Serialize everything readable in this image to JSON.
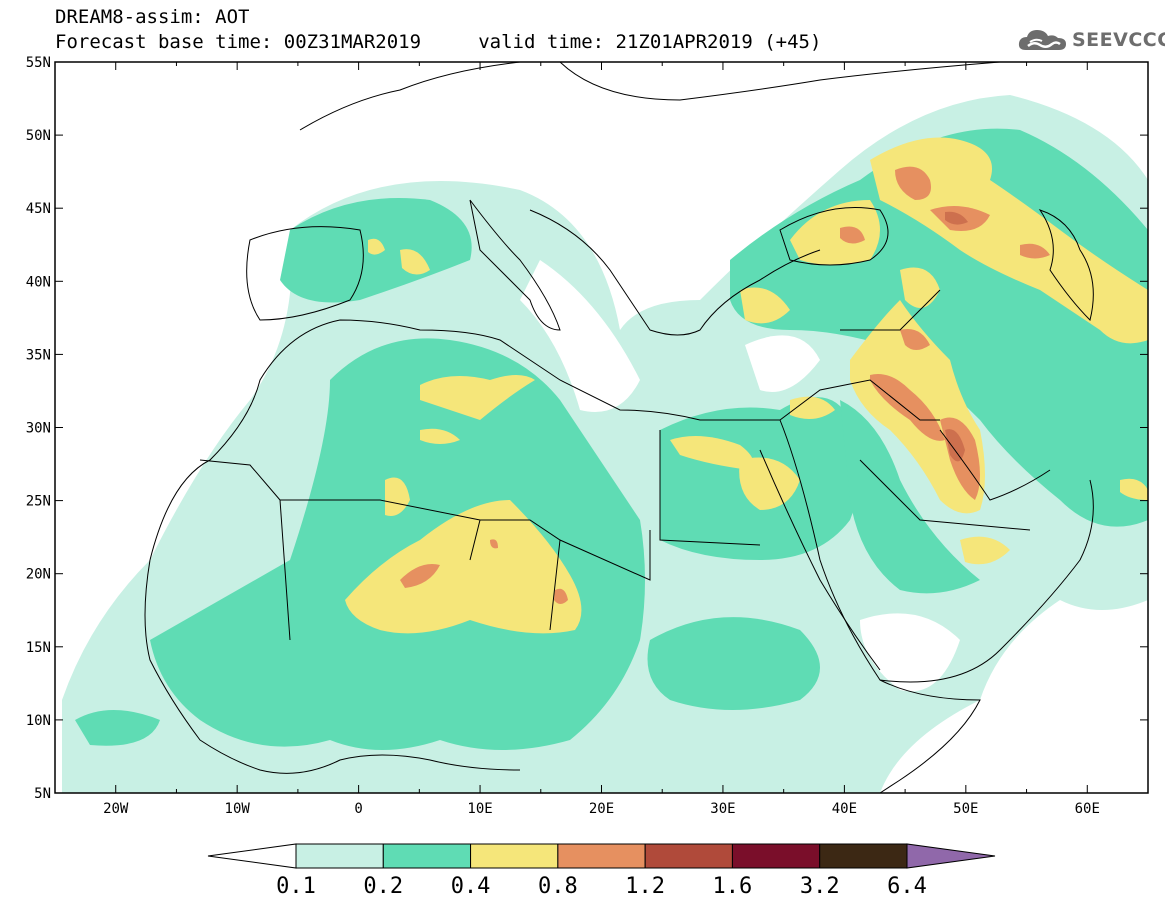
{
  "header": {
    "title_line1": "DREAM8-assim: AOT",
    "title_line2": "Forecast base time: 00Z31MAR2019     valid time: 21Z01APR2019 (+45)"
  },
  "logo": {
    "text": "SEEVCCC",
    "icon": "cloud-icon",
    "color": "#6d6d6d"
  },
  "map": {
    "lon_range": [
      -25,
      65
    ],
    "lat_range": [
      5,
      55
    ],
    "lon_ticks": [
      "20W",
      "10W",
      "0",
      "10E",
      "20E",
      "30E",
      "40E",
      "50E",
      "60E"
    ],
    "lat_ticks": [
      "55N",
      "50N",
      "45N",
      "40N",
      "35N",
      "30N",
      "25N",
      "20N",
      "15N",
      "10N",
      "5N"
    ]
  },
  "colorbar": {
    "labels": [
      "0.1",
      "0.2",
      "0.4",
      "0.8",
      "1.2",
      "1.6",
      "3.2",
      "6.4"
    ],
    "colors": [
      "#ffffff",
      "#c8f0e4",
      "#5fdcb4",
      "#f5e67a",
      "#e69060",
      "#b04a3a",
      "#7a0e2a",
      "#3c2814",
      "#9068aa"
    ]
  }
}
